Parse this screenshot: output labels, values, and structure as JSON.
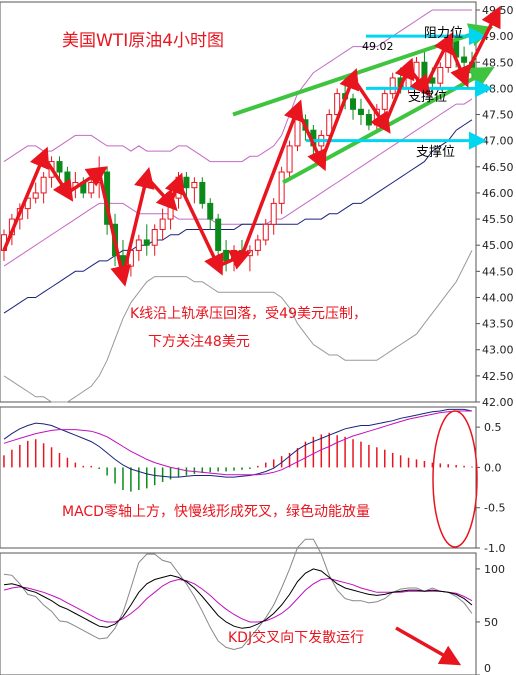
{
  "chart_data": [
    {
      "type": "candlestick",
      "title": "美国WTI原油4小时图",
      "ylim": [
        42.0,
        49.5
      ],
      "yticks": [
        "49.50",
        "49.00",
        "48.50",
        "48.00",
        "47.50",
        "47.00",
        "46.50",
        "46.00",
        "45.50",
        "45.00",
        "44.50",
        "44.00",
        "43.50",
        "43.00",
        "42.50",
        "42.00"
      ],
      "ohlc": [
        [
          44.9,
          45.3,
          44.7,
          45.2
        ],
        [
          45.2,
          45.6,
          45.0,
          45.5
        ],
        [
          45.5,
          45.8,
          45.3,
          45.7
        ],
        [
          45.7,
          46.0,
          45.5,
          45.9
        ],
        [
          45.9,
          46.2,
          45.8,
          46.0
        ],
        [
          46.0,
          46.4,
          45.8,
          46.3
        ],
        [
          46.3,
          46.7,
          46.1,
          46.6
        ],
        [
          46.6,
          46.7,
          46.2,
          46.4
        ],
        [
          46.4,
          46.5,
          46.0,
          46.1
        ],
        [
          46.1,
          46.4,
          45.9,
          46.2
        ],
        [
          46.2,
          46.3,
          45.9,
          46.0
        ],
        [
          46.0,
          46.3,
          45.9,
          46.2
        ],
        [
          46.2,
          46.7,
          45.9,
          46.4
        ],
        [
          46.4,
          46.5,
          45.2,
          45.4
        ],
        [
          45.4,
          45.6,
          44.6,
          44.8
        ],
        [
          44.8,
          45.1,
          44.4,
          44.6
        ],
        [
          44.6,
          45.0,
          44.4,
          44.9
        ],
        [
          44.9,
          45.2,
          44.7,
          45.1
        ],
        [
          45.1,
          45.4,
          44.8,
          45.0
        ],
        [
          45.0,
          45.4,
          44.8,
          45.3
        ],
        [
          45.3,
          45.7,
          45.1,
          45.5
        ],
        [
          45.5,
          46.0,
          45.3,
          45.9
        ],
        [
          45.9,
          46.4,
          45.7,
          46.3
        ],
        [
          46.3,
          46.4,
          45.9,
          46.1
        ],
        [
          46.1,
          46.3,
          45.8,
          46.2
        ],
        [
          46.2,
          46.3,
          45.7,
          45.8
        ],
        [
          45.8,
          45.9,
          45.3,
          45.5
        ],
        [
          45.5,
          45.6,
          44.8,
          44.9
        ],
        [
          44.9,
          45.1,
          44.5,
          44.7
        ],
        [
          44.7,
          45.0,
          44.5,
          44.9
        ],
        [
          44.9,
          45.1,
          44.7,
          44.8
        ],
        [
          44.8,
          45.0,
          44.5,
          44.9
        ],
        [
          44.9,
          45.2,
          44.8,
          45.1
        ],
        [
          45.1,
          45.5,
          45.0,
          45.4
        ],
        [
          45.4,
          45.9,
          45.2,
          45.8
        ],
        [
          45.8,
          46.5,
          45.6,
          46.4
        ],
        [
          46.4,
          47.0,
          46.3,
          46.9
        ],
        [
          46.9,
          47.6,
          46.8,
          47.4
        ],
        [
          47.4,
          47.5,
          47.0,
          47.2
        ],
        [
          47.2,
          47.3,
          46.7,
          46.9
        ],
        [
          46.9,
          47.2,
          46.6,
          47.1
        ],
        [
          47.1,
          47.6,
          47.0,
          47.5
        ],
        [
          47.5,
          48.0,
          47.4,
          47.9
        ],
        [
          47.9,
          48.2,
          47.6,
          47.8
        ],
        [
          47.8,
          47.9,
          47.4,
          47.6
        ],
        [
          47.6,
          47.8,
          47.3,
          47.5
        ],
        [
          47.5,
          47.6,
          47.2,
          47.3
        ],
        [
          47.3,
          47.7,
          47.2,
          47.6
        ],
        [
          47.6,
          48.0,
          47.5,
          47.9
        ],
        [
          47.9,
          48.3,
          47.8,
          48.2
        ],
        [
          48.2,
          48.4,
          47.9,
          48.0
        ],
        [
          48.0,
          48.3,
          47.9,
          48.2
        ],
        [
          48.2,
          48.6,
          48.1,
          48.5
        ],
        [
          48.5,
          48.7,
          48.1,
          48.2
        ],
        [
          48.2,
          48.4,
          47.9,
          48.1
        ],
        [
          48.1,
          48.5,
          48.0,
          48.4
        ],
        [
          48.4,
          49.0,
          48.3,
          48.9
        ],
        [
          48.9,
          49.0,
          48.4,
          48.6
        ],
        [
          48.6,
          48.8,
          48.3,
          48.5
        ],
        [
          48.5,
          48.7,
          48.2,
          48.3
        ]
      ],
      "bollinger_upper": [
        46.6,
        46.7,
        46.8,
        46.9,
        46.9,
        46.8,
        46.8,
        46.9,
        47.0,
        47.1,
        47.1,
        47.1,
        47.0,
        46.9,
        46.9,
        46.9,
        46.8,
        46.9,
        46.8,
        46.8,
        46.8,
        46.8,
        46.9,
        46.9,
        46.8,
        46.7,
        46.6,
        46.6,
        46.6,
        46.6,
        46.6,
        46.7,
        46.7,
        46.8,
        46.9,
        47.1,
        47.5,
        47.9,
        48.1,
        48.3,
        48.4,
        48.5,
        48.6,
        48.7,
        48.8,
        48.8,
        48.8,
        48.8,
        48.9,
        49.0,
        49.1,
        49.2,
        49.3,
        49.4,
        49.5,
        49.5,
        49.5,
        49.5,
        49.5,
        49.5
      ],
      "bollinger_middle": [
        44.6,
        44.7,
        44.8,
        44.9,
        45.0,
        45.1,
        45.2,
        45.3,
        45.4,
        45.5,
        45.6,
        45.7,
        45.8,
        45.8,
        45.8,
        45.8,
        45.7,
        45.6,
        45.6,
        45.6,
        45.6,
        45.6,
        45.5,
        45.5,
        45.5,
        45.5,
        45.5,
        45.4,
        45.4,
        45.4,
        45.4,
        45.4,
        45.4,
        45.4,
        45.5,
        45.5,
        45.6,
        45.7,
        45.8,
        45.9,
        46.0,
        46.1,
        46.2,
        46.3,
        46.4,
        46.5,
        46.6,
        46.7,
        46.8,
        46.9,
        47.0,
        47.1,
        47.2,
        47.3,
        47.4,
        47.5,
        47.6,
        47.7,
        47.7,
        47.8
      ],
      "bollinger_lower": [
        42.5,
        42.4,
        42.3,
        42.2,
        42.1,
        42.1,
        42.0,
        42.0,
        42.0,
        42.1,
        42.2,
        42.3,
        42.5,
        42.8,
        43.2,
        43.6,
        43.9,
        44.1,
        44.3,
        44.4,
        44.4,
        44.4,
        44.4,
        44.4,
        44.3,
        44.3,
        44.2,
        44.1,
        44.1,
        44.1,
        44.1,
        44.1,
        44.1,
        44.1,
        44.1,
        44.0,
        43.8,
        43.5,
        43.3,
        43.1,
        43.0,
        42.9,
        42.9,
        42.8,
        42.8,
        42.8,
        42.8,
        42.8,
        42.9,
        43.0,
        43.1,
        43.2,
        43.3,
        43.5,
        43.7,
        43.9,
        44.1,
        44.3,
        44.6,
        44.9
      ],
      "long_ma": [
        43.7,
        43.8,
        43.9,
        44.0,
        44.0,
        44.1,
        44.2,
        44.3,
        44.4,
        44.5,
        44.5,
        44.6,
        44.7,
        44.7,
        44.8,
        44.9,
        44.9,
        45.0,
        45.0,
        45.1,
        45.1,
        45.2,
        45.2,
        45.3,
        45.3,
        45.3,
        45.3,
        45.3,
        45.3,
        45.3,
        45.4,
        45.4,
        45.4,
        45.4,
        45.4,
        45.4,
        45.4,
        45.4,
        45.5,
        45.5,
        45.5,
        45.6,
        45.6,
        45.7,
        45.8,
        45.8,
        45.9,
        46.0,
        46.1,
        46.2,
        46.3,
        46.4,
        46.5,
        46.6,
        46.8,
        46.9,
        47.0,
        47.2,
        47.3,
        47.4
      ],
      "price_label": "49.02",
      "annotations": {
        "resistance": "阻力位",
        "support_upper": "支撑位",
        "support_lower": "支撑位",
        "comment_line1": "K线沿上轨承压回落，受49美元压制，",
        "comment_line2": "下方关注48美元"
      }
    },
    {
      "type": "macd",
      "ylim": [
        -1.0,
        0.75
      ],
      "yticks": [
        "0.5",
        "0.0",
        "-0.5",
        "-1.0"
      ],
      "dif": [
        0.35,
        0.42,
        0.48,
        0.52,
        0.55,
        0.54,
        0.52,
        0.48,
        0.44,
        0.4,
        0.36,
        0.32,
        0.26,
        0.18,
        0.1,
        0.03,
        -0.02,
        -0.05,
        -0.08,
        -0.1,
        -0.11,
        -0.12,
        -0.12,
        -0.11,
        -0.1,
        -0.1,
        -0.1,
        -0.11,
        -0.12,
        -0.12,
        -0.11,
        -0.1,
        -0.08,
        -0.05,
        -0.01,
        0.06,
        0.14,
        0.22,
        0.28,
        0.32,
        0.36,
        0.4,
        0.44,
        0.48,
        0.5,
        0.52,
        0.52,
        0.54,
        0.56,
        0.58,
        0.61,
        0.63,
        0.65,
        0.67,
        0.69,
        0.7,
        0.72,
        0.72,
        0.72,
        0.7
      ],
      "dea": [
        0.3,
        0.33,
        0.36,
        0.39,
        0.42,
        0.44,
        0.46,
        0.47,
        0.47,
        0.47,
        0.46,
        0.45,
        0.42,
        0.38,
        0.32,
        0.26,
        0.2,
        0.15,
        0.1,
        0.06,
        0.03,
        0.0,
        -0.02,
        -0.04,
        -0.05,
        -0.06,
        -0.07,
        -0.08,
        -0.09,
        -0.09,
        -0.09,
        -0.09,
        -0.09,
        -0.08,
        -0.06,
        -0.03,
        0.02,
        0.07,
        0.12,
        0.17,
        0.22,
        0.26,
        0.31,
        0.35,
        0.39,
        0.42,
        0.45,
        0.48,
        0.51,
        0.54,
        0.57,
        0.6,
        0.62,
        0.64,
        0.66,
        0.68,
        0.69,
        0.7,
        0.7,
        0.7
      ],
      "hist": [
        0.15,
        0.22,
        0.28,
        0.33,
        0.35,
        0.3,
        0.25,
        0.18,
        0.12,
        0.06,
        0.02,
        0.02,
        -0.02,
        -0.1,
        -0.2,
        -0.28,
        -0.3,
        -0.28,
        -0.26,
        -0.22,
        -0.18,
        -0.15,
        -0.12,
        -0.1,
        -0.08,
        -0.07,
        -0.06,
        -0.05,
        -0.05,
        -0.04,
        -0.03,
        -0.02,
        0.02,
        0.06,
        0.1,
        0.14,
        0.18,
        0.24,
        0.32,
        0.38,
        0.41,
        0.43,
        0.4,
        0.38,
        0.35,
        0.32,
        0.28,
        0.25,
        0.22,
        0.18,
        0.15,
        0.12,
        0.1,
        0.08,
        0.06,
        0.05,
        0.04,
        0.03,
        0.02,
        0.01
      ],
      "comment": "MACD零轴上方，快慢线形成死叉，绿色动能放量"
    },
    {
      "type": "kdj",
      "ylim": [
        0,
        115
      ],
      "yticks": [
        "100",
        "50",
        "0"
      ],
      "k": [
        85,
        86,
        84,
        80,
        78,
        74,
        70,
        65,
        62,
        58,
        54,
        50,
        46,
        45,
        48,
        55,
        66,
        78,
        86,
        90,
        92,
        94,
        92,
        88,
        82,
        74,
        65,
        56,
        50,
        46,
        44,
        45,
        48,
        52,
        58,
        66,
        76,
        88,
        96,
        100,
        98,
        92,
        86,
        82,
        80,
        78,
        76,
        75,
        76,
        78,
        79,
        80,
        80,
        79,
        80,
        79,
        78,
        76,
        72,
        66
      ],
      "d": [
        80,
        82,
        83,
        82,
        80,
        78,
        75,
        72,
        68,
        64,
        60,
        56,
        52,
        50,
        50,
        53,
        58,
        64,
        72,
        78,
        84,
        88,
        90,
        89,
        86,
        81,
        75,
        68,
        62,
        57,
        53,
        50,
        50,
        51,
        54,
        58,
        64,
        72,
        80,
        86,
        90,
        91,
        89,
        87,
        85,
        82,
        80,
        78,
        78,
        78,
        78,
        79,
        79,
        79,
        79,
        79,
        78,
        77,
        74,
        70
      ],
      "j": [
        95,
        94,
        86,
        76,
        74,
        66,
        60,
        51,
        50,
        46,
        42,
        38,
        34,
        35,
        44,
        59,
        82,
        106,
        114,
        114,
        108,
        106,
        96,
        86,
        74,
        60,
        45,
        32,
        26,
        24,
        26,
        35,
        44,
        54,
        66,
        82,
        100,
        120,
        128,
        128,
        114,
        94,
        80,
        72,
        70,
        70,
        68,
        69,
        72,
        78,
        81,
        82,
        82,
        79,
        82,
        79,
        78,
        74,
        68,
        58
      ],
      "comment": "KDJ交叉向下发散运行"
    }
  ]
}
